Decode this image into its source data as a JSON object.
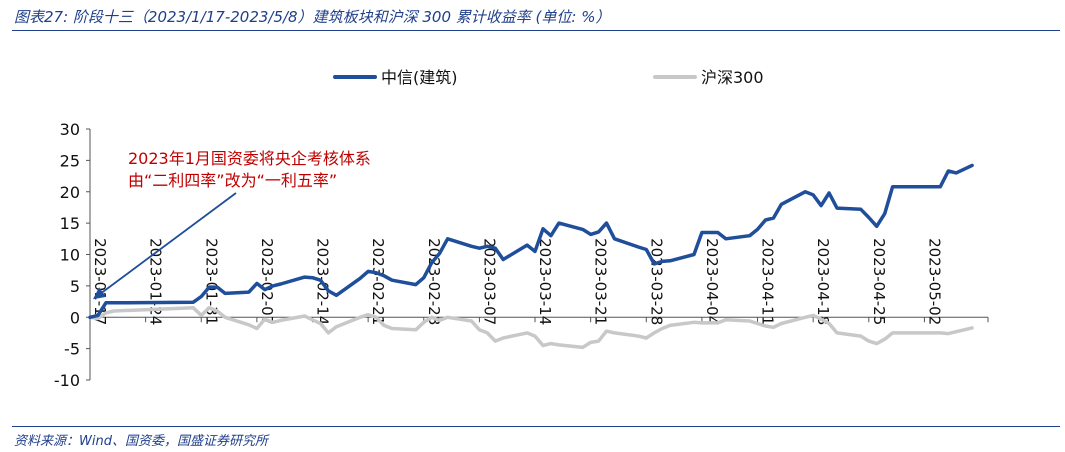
{
  "header": {
    "title": "图表27:  阶段十三（2023/1/17-2023/5/8）建筑板块和沪深 300 累计收益率 (单位:    %）"
  },
  "footer": {
    "source": "资料来源：Wind、国资委，国盛证券研究所"
  },
  "colors": {
    "brand": "#1f3f8a",
    "series_main": "#1f4e9a",
    "series_index": "#c8c8c8",
    "annotation": "#c00000",
    "arrow": "#1f4e9a"
  },
  "chart_data": {
    "type": "line",
    "title": "",
    "xlabel": "",
    "ylabel": "",
    "ylim": [
      -10,
      30
    ],
    "yticks": [
      -10,
      -5,
      0,
      5,
      10,
      15,
      20,
      25,
      30
    ],
    "xlim": [
      "2023-01-17",
      "2023-05-10"
    ],
    "xticks": [
      "2023-01-17",
      "2023-01-24",
      "2023-01-31",
      "2023-02-07",
      "2023-02-14",
      "2023-02-21",
      "2023-02-28",
      "2023-03-07",
      "2023-03-14",
      "2023-03-21",
      "2023-03-28",
      "2023-04-04",
      "2023-04-11",
      "2023-04-18",
      "2023-04-25",
      "2023-05-02"
    ],
    "grid": false,
    "legend_position": "top",
    "annotation": {
      "lines": [
        "2023年1月国资委将央企考核体系",
        "由“二利四率”改为“一利五率”"
      ],
      "points_to": [
        "2023-01-17",
        0
      ]
    },
    "series": [
      {
        "name": "中信(建筑)",
        "points": [
          [
            "2023-01-17",
            0
          ],
          [
            "2023-01-18",
            0.3
          ],
          [
            "2023-01-19",
            2.3
          ],
          [
            "2023-01-20",
            2.3
          ],
          [
            "2023-01-30",
            2.4
          ],
          [
            "2023-01-31",
            3.3
          ],
          [
            "2023-02-01",
            4.8
          ],
          [
            "2023-02-02",
            4.8
          ],
          [
            "2023-02-03",
            3.8
          ],
          [
            "2023-02-06",
            4.0
          ],
          [
            "2023-02-07",
            5.4
          ],
          [
            "2023-02-08",
            4.4
          ],
          [
            "2023-02-09",
            5.0
          ],
          [
            "2023-02-10",
            5.3
          ],
          [
            "2023-02-13",
            6.4
          ],
          [
            "2023-02-14",
            6.3
          ],
          [
            "2023-02-15",
            5.9
          ],
          [
            "2023-02-16",
            4.2
          ],
          [
            "2023-02-17",
            3.5
          ],
          [
            "2023-02-20",
            6.2
          ],
          [
            "2023-02-21",
            7.3
          ],
          [
            "2023-02-22",
            7.1
          ],
          [
            "2023-02-23",
            6.6
          ],
          [
            "2023-02-24",
            5.9
          ],
          [
            "2023-02-27",
            5.2
          ],
          [
            "2023-02-28",
            6.3
          ],
          [
            "2023-03-01",
            8.7
          ],
          [
            "2023-03-02",
            10.2
          ],
          [
            "2023-03-03",
            12.5
          ],
          [
            "2023-03-06",
            11.3
          ],
          [
            "2023-03-07",
            11.0
          ],
          [
            "2023-03-08",
            11.3
          ],
          [
            "2023-03-09",
            11.0
          ],
          [
            "2023-03-10",
            9.2
          ],
          [
            "2023-03-13",
            11.5
          ],
          [
            "2023-03-14",
            10.5
          ],
          [
            "2023-03-15",
            14.1
          ],
          [
            "2023-03-16",
            13.0
          ],
          [
            "2023-03-17",
            15.0
          ],
          [
            "2023-03-20",
            14.0
          ],
          [
            "2023-03-21",
            13.2
          ],
          [
            "2023-03-22",
            13.6
          ],
          [
            "2023-03-23",
            15.0
          ],
          [
            "2023-03-24",
            12.5
          ],
          [
            "2023-03-27",
            11.2
          ],
          [
            "2023-03-28",
            10.8
          ],
          [
            "2023-03-29",
            8.5
          ],
          [
            "2023-03-30",
            8.9
          ],
          [
            "2023-03-31",
            9.0
          ],
          [
            "2023-04-03",
            10.0
          ],
          [
            "2023-04-04",
            13.5
          ],
          [
            "2023-04-06",
            13.5
          ],
          [
            "2023-04-07",
            12.5
          ],
          [
            "2023-04-10",
            13.0
          ],
          [
            "2023-04-11",
            14.0
          ],
          [
            "2023-04-12",
            15.5
          ],
          [
            "2023-04-13",
            15.8
          ],
          [
            "2023-04-14",
            18.0
          ],
          [
            "2023-04-17",
            20.0
          ],
          [
            "2023-04-18",
            19.5
          ],
          [
            "2023-04-19",
            17.8
          ],
          [
            "2023-04-20",
            19.8
          ],
          [
            "2023-04-21",
            17.4
          ],
          [
            "2023-04-24",
            17.2
          ],
          [
            "2023-04-25",
            15.9
          ],
          [
            "2023-04-26",
            14.5
          ],
          [
            "2023-04-27",
            16.5
          ],
          [
            "2023-04-28",
            20.8
          ],
          [
            "2023-05-04",
            20.8
          ],
          [
            "2023-05-05",
            23.3
          ],
          [
            "2023-05-06",
            23.0
          ],
          [
            "2023-05-08",
            24.2
          ]
        ]
      },
      {
        "name": "沪深300",
        "points": [
          [
            "2023-01-17",
            0
          ],
          [
            "2023-01-18",
            -0.2
          ],
          [
            "2023-01-19",
            0.7
          ],
          [
            "2023-01-20",
            1.0
          ],
          [
            "2023-01-30",
            1.5
          ],
          [
            "2023-01-31",
            0.3
          ],
          [
            "2023-02-01",
            1.5
          ],
          [
            "2023-02-02",
            1.0
          ],
          [
            "2023-02-03",
            0.0
          ],
          [
            "2023-02-06",
            -1.2
          ],
          [
            "2023-02-07",
            -1.8
          ],
          [
            "2023-02-08",
            -0.3
          ],
          [
            "2023-02-09",
            -0.8
          ],
          [
            "2023-02-10",
            -0.5
          ],
          [
            "2023-02-13",
            0.2
          ],
          [
            "2023-02-14",
            -0.4
          ],
          [
            "2023-02-15",
            -1.0
          ],
          [
            "2023-02-16",
            -2.5
          ],
          [
            "2023-02-17",
            -1.5
          ],
          [
            "2023-02-20",
            0.0
          ],
          [
            "2023-02-21",
            0.4
          ],
          [
            "2023-02-22",
            0.0
          ],
          [
            "2023-02-23",
            -1.3
          ],
          [
            "2023-02-24",
            -1.8
          ],
          [
            "2023-02-27",
            -2.0
          ],
          [
            "2023-02-28",
            -0.8
          ],
          [
            "2023-03-01",
            0.0
          ],
          [
            "2023-03-02",
            -0.5
          ],
          [
            "2023-03-03",
            0.0
          ],
          [
            "2023-03-06",
            -0.6
          ],
          [
            "2023-03-07",
            -2.0
          ],
          [
            "2023-03-08",
            -2.5
          ],
          [
            "2023-03-09",
            -3.8
          ],
          [
            "2023-03-10",
            -3.3
          ],
          [
            "2023-03-13",
            -2.5
          ],
          [
            "2023-03-14",
            -3.0
          ],
          [
            "2023-03-15",
            -4.5
          ],
          [
            "2023-03-16",
            -4.2
          ],
          [
            "2023-03-17",
            -4.4
          ],
          [
            "2023-03-20",
            -4.8
          ],
          [
            "2023-03-21",
            -4.0
          ],
          [
            "2023-03-22",
            -3.8
          ],
          [
            "2023-03-23",
            -2.2
          ],
          [
            "2023-03-24",
            -2.5
          ],
          [
            "2023-03-27",
            -3.0
          ],
          [
            "2023-03-28",
            -3.3
          ],
          [
            "2023-03-29",
            -2.5
          ],
          [
            "2023-03-30",
            -1.8
          ],
          [
            "2023-03-31",
            -1.3
          ],
          [
            "2023-04-03",
            -0.8
          ],
          [
            "2023-04-04",
            -0.9
          ],
          [
            "2023-04-06",
            -0.9
          ],
          [
            "2023-04-07",
            -0.4
          ],
          [
            "2023-04-10",
            -0.6
          ],
          [
            "2023-04-11",
            -1.0
          ],
          [
            "2023-04-12",
            -1.4
          ],
          [
            "2023-04-13",
            -1.6
          ],
          [
            "2023-04-14",
            -1.0
          ],
          [
            "2023-04-17",
            0.0
          ],
          [
            "2023-04-18",
            0.3
          ],
          [
            "2023-04-19",
            -0.3
          ],
          [
            "2023-04-20",
            -1.0
          ],
          [
            "2023-04-21",
            -2.5
          ],
          [
            "2023-04-24",
            -3.0
          ],
          [
            "2023-04-25",
            -3.8
          ],
          [
            "2023-04-26",
            -4.2
          ],
          [
            "2023-04-27",
            -3.5
          ],
          [
            "2023-04-28",
            -2.5
          ],
          [
            "2023-05-04",
            -2.5
          ],
          [
            "2023-05-05",
            -2.6
          ],
          [
            "2023-05-06",
            -2.3
          ],
          [
            "2023-05-08",
            -1.7
          ]
        ]
      }
    ]
  }
}
